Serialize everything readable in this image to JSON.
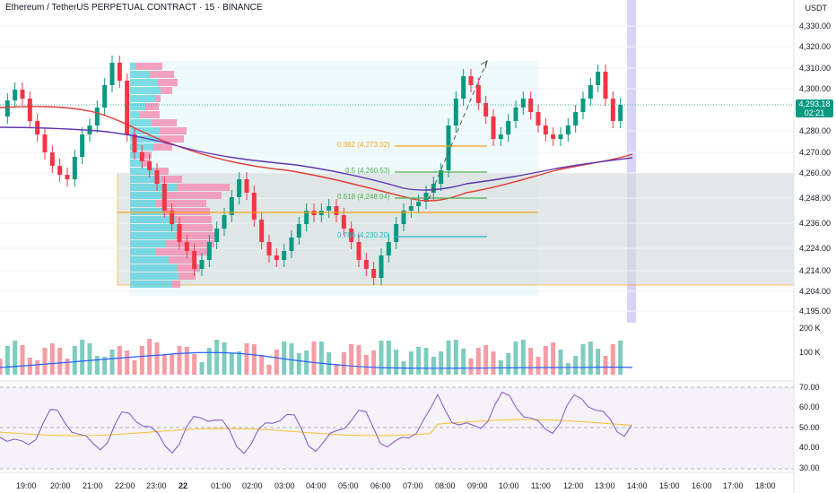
{
  "header": {
    "title": "Ethereum / TetherUS PERPETUAL CONTRACT · 15 · BINANCE",
    "currency": "USDT"
  },
  "price_axis": {
    "ticks": [
      "4,330.00",
      "4,320.00",
      "4,310.00",
      "4,300.00",
      "4,293.18",
      "4,280.00",
      "4,270.00",
      "4,260.00",
      "4,248.00",
      "4,236.00",
      "4,224.00",
      "4,214.00",
      "4,204.00",
      "4,195.00"
    ]
  },
  "current_price": {
    "price": "4,293.18",
    "countdown": "02:21",
    "color": "#089981"
  },
  "time_axis": {
    "ticks": [
      "19:00",
      "20:00",
      "21:00",
      "22:00",
      "23:00",
      "22",
      "01:00",
      "02:00",
      "03:00",
      "04:00",
      "05:00",
      "06:00",
      "07:00",
      "08:00",
      "09:00",
      "10:00",
      "11:00",
      "12:00",
      "13:00",
      "14:00",
      "15:00",
      "16:00",
      "17:00",
      "18:00"
    ]
  },
  "volume_axis": {
    "ticks": [
      "200 K",
      "100 K"
    ]
  },
  "rsi_axis": {
    "ticks": [
      "70.00",
      "60.00",
      "50.00",
      "40.00",
      "30.00"
    ]
  },
  "fib_levels": [
    {
      "label": "0.382 (4,273.02)",
      "color": "#f7a21b"
    },
    {
      "label": "0.5 (4,260.53)",
      "color": "#4caf50"
    },
    {
      "label": "0.618 (4,248.04)",
      "color": "#4caf50"
    },
    {
      "label": "0.786 (4,230.20)",
      "color": "#22b6c9"
    }
  ],
  "colors": {
    "up": "#089981",
    "down": "#f23645",
    "vol_up": "#7fccc0",
    "vol_down": "#f59ca4",
    "ma_red": "#e53935",
    "ma_purple": "#5e35b1",
    "rsi": "#7e57c2",
    "rsi_ma": "#fbc02d",
    "box_fill": "#dfe3e3",
    "box_border": "#f7a21b",
    "profile_cyan": "#5fd3e0",
    "profile_pink": "#f28cb1"
  }
}
